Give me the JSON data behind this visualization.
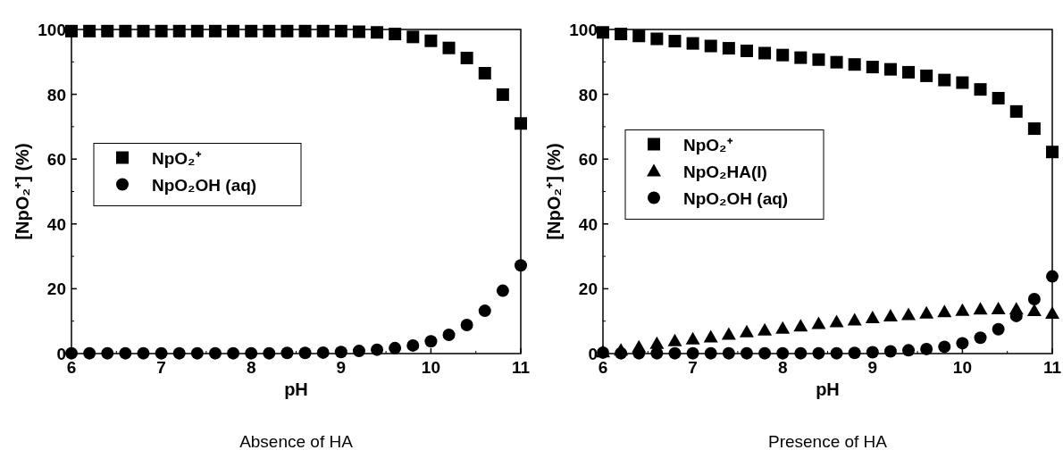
{
  "chart_data": [
    {
      "type": "scatter",
      "xlabel": "pH",
      "ylabel": "[NpO₂⁺] (%)",
      "annotations": [
        "Absence of HA"
      ],
      "x": [
        6,
        6.2,
        6.4,
        6.6,
        6.8,
        7,
        7.2,
        7.4,
        7.6,
        7.8,
        8,
        8.2,
        8.4,
        8.6,
        8.8,
        9,
        9.2,
        9.4,
        9.6,
        9.8,
        10,
        10.2,
        10.4,
        10.6,
        10.8,
        11
      ],
      "xlim": [
        6,
        11
      ],
      "xticks": [
        6,
        7,
        8,
        9,
        10,
        11
      ],
      "ylim": [
        0,
        100
      ],
      "yticks": [
        0,
        20,
        40,
        60,
        80,
        100
      ],
      "legend": "center left",
      "series": [
        {
          "name": "NpO₂⁺",
          "color": "#000000",
          "marker": "square",
          "values": [
            99.5,
            99.5,
            99.5,
            99.5,
            99.5,
            99.5,
            99.5,
            99.5,
            99.5,
            99.5,
            99.5,
            99.5,
            99.5,
            99.5,
            99.5,
            99.5,
            99.3,
            99.1,
            98.6,
            97.7,
            96.5,
            94.3,
            91.2,
            86.5,
            79.9,
            71
          ]
        },
        {
          "name": "NpO₂OH (aq)",
          "color": "#000000",
          "marker": "circle",
          "values": [
            0.1,
            0.1,
            0.1,
            0.1,
            0.1,
            0.1,
            0.1,
            0.1,
            0.1,
            0.1,
            0.1,
            0.1,
            0.2,
            0.2,
            0.3,
            0.5,
            0.8,
            1.2,
            1.7,
            2.5,
            3.8,
            5.8,
            8.8,
            13.2,
            19.4,
            27.2
          ]
        }
      ]
    },
    {
      "type": "scatter",
      "xlabel": "pH",
      "ylabel": "[NpO₂⁺] (%)",
      "annotations": [
        "Presence of HA"
      ],
      "x": [
        6,
        6.2,
        6.4,
        6.6,
        6.8,
        7,
        7.2,
        7.4,
        7.6,
        7.8,
        8,
        8.2,
        8.4,
        8.6,
        8.8,
        9,
        9.2,
        9.4,
        9.6,
        9.8,
        10,
        10.2,
        10.4,
        10.6,
        10.8,
        11
      ],
      "xlim": [
        6,
        11
      ],
      "xticks": [
        6,
        7,
        8,
        9,
        10,
        11
      ],
      "ylim": [
        0,
        100
      ],
      "yticks": [
        0,
        20,
        40,
        60,
        80,
        100
      ],
      "legend": "center left",
      "series": [
        {
          "name": "NpO₂⁺",
          "color": "#000000",
          "marker": "square",
          "values": [
            99.1,
            98.6,
            98,
            97.1,
            96.4,
            95.7,
            94.9,
            94.2,
            93.4,
            92.7,
            92.1,
            91.3,
            90.7,
            89.9,
            89.2,
            88.4,
            87.7,
            86.8,
            85.7,
            84.4,
            83.6,
            81.5,
            78.8,
            74.7,
            69.4,
            62.2
          ]
        },
        {
          "name": "NpO₂HA(I)",
          "color": "#000000",
          "marker": "triangle",
          "values": [
            0.5,
            1,
            2,
            3.1,
            3.9,
            4.5,
            5.1,
            5.9,
            6.7,
            7.2,
            7.8,
            8.5,
            9.2,
            9.8,
            10.3,
            11,
            11.6,
            12,
            12.5,
            12.9,
            13.3,
            13.7,
            13.8,
            13.7,
            13.2,
            12.4
          ]
        },
        {
          "name": "NpO₂OH (aq)",
          "color": "#000000",
          "marker": "circle",
          "values": [
            0.3,
            0.1,
            0.1,
            0.1,
            0.1,
            0.1,
            0.1,
            0.1,
            0.1,
            0.1,
            0.1,
            0.1,
            0.1,
            0.1,
            0.2,
            0.4,
            0.7,
            1,
            1.4,
            2.1,
            3.2,
            4.9,
            7.5,
            11.6,
            16.8,
            23.8
          ]
        }
      ]
    }
  ]
}
